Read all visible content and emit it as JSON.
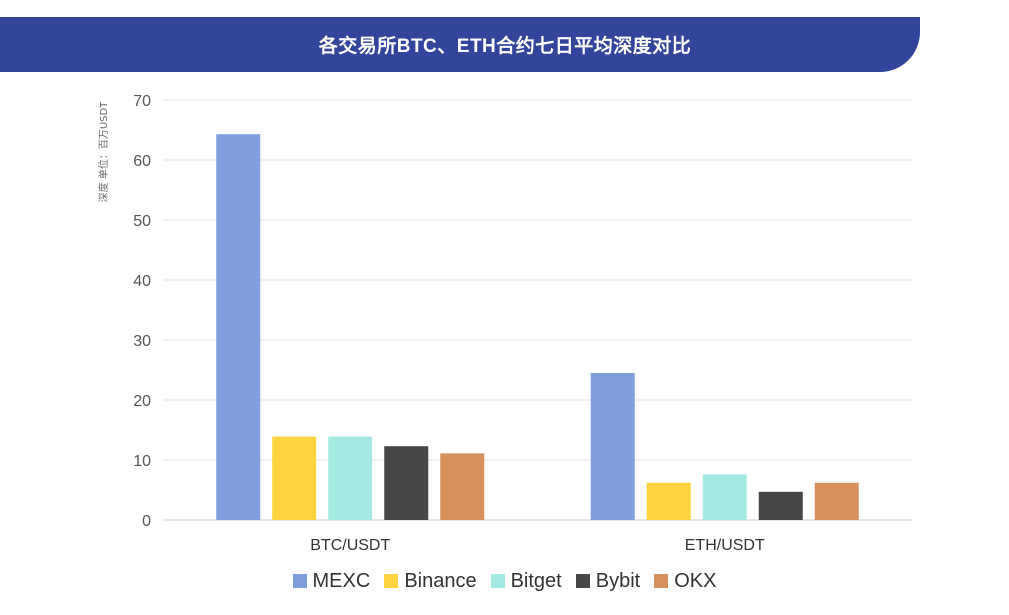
{
  "chart_data": {
    "type": "bar",
    "title": "各交易所BTC、ETH合约七日平均深度对比",
    "ylabel": "深度 单位：百万USDT",
    "ylim": [
      0,
      70
    ],
    "yticks": [
      0,
      10,
      20,
      30,
      40,
      50,
      60,
      70
    ],
    "categories": [
      "BTC/USDT",
      "ETH/USDT"
    ],
    "series": [
      {
        "name": "MEXC",
        "values": [
          64.3,
          24.5
        ]
      },
      {
        "name": "Binance",
        "values": [
          13.9,
          6.2
        ]
      },
      {
        "name": "Bitget",
        "values": [
          13.9,
          7.6
        ]
      },
      {
        "name": "Bybit",
        "values": [
          12.3,
          4.7
        ]
      },
      {
        "name": "OKX",
        "values": [
          11.1,
          6.2
        ]
      }
    ],
    "legend_position": "bottom",
    "grid": true
  },
  "colors": {
    "banner": "#33459a",
    "series": [
      "#7f9fdc",
      "#fdd33f",
      "#a3e8e1",
      "#474747",
      "#d7905a"
    ],
    "grid": "#e3e3e3",
    "axis_text": "#555555"
  }
}
